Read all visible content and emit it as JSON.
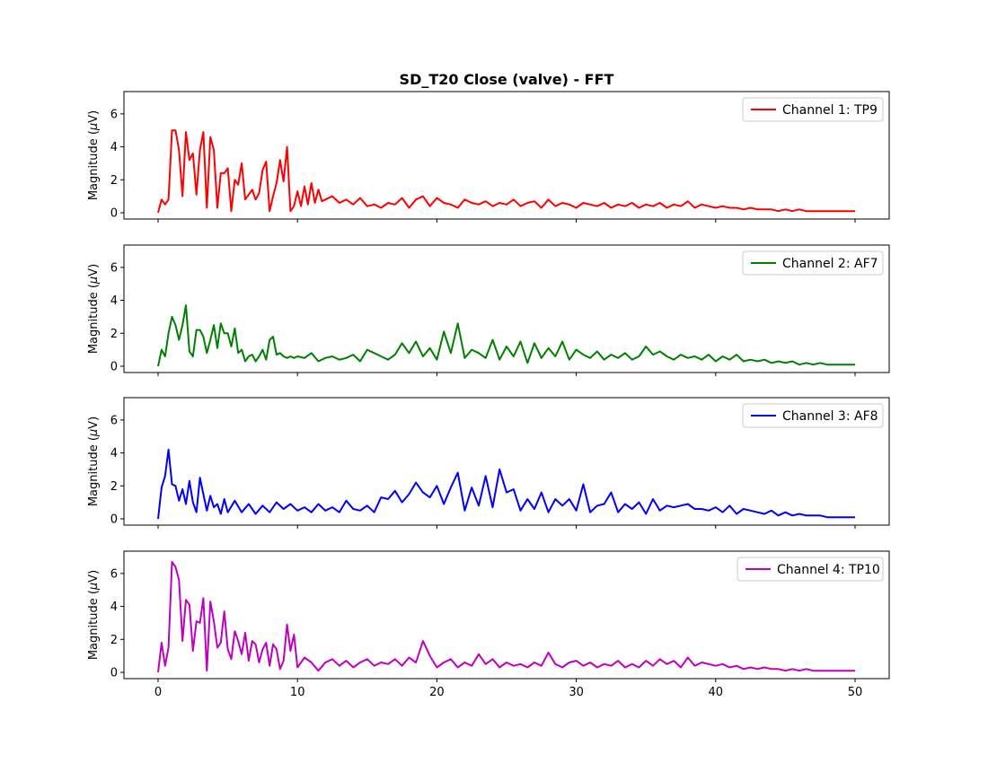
{
  "chart_data": {
    "type": "line",
    "title": "SD_T20 Close (valve) - FFT",
    "xlabel": "",
    "xlim": [
      0,
      50
    ],
    "x_ticks": [
      0,
      10,
      20,
      30,
      40,
      50
    ],
    "ylabel": "Magnitude ($\\mu$V)",
    "ylim": [
      0,
      7
    ],
    "y_ticks": [
      0,
      2,
      4,
      6
    ],
    "grid": false,
    "legend_placement": "upper right",
    "series": [
      {
        "name": "Channel 1: TP9",
        "color": "#ff0000",
        "x": [
          0,
          0.25,
          0.5,
          0.75,
          1,
          1.25,
          1.5,
          1.75,
          2,
          2.25,
          2.5,
          2.75,
          3,
          3.25,
          3.5,
          3.75,
          4,
          4.25,
          4.5,
          4.75,
          5,
          5.25,
          5.5,
          5.75,
          6,
          6.25,
          6.5,
          6.75,
          7,
          7.25,
          7.5,
          7.75,
          8,
          8.25,
          8.5,
          8.75,
          9,
          9.25,
          9.5,
          9.75,
          10,
          10.25,
          10.5,
          10.75,
          11,
          11.25,
          11.5,
          11.75,
          12,
          12.5,
          13,
          13.5,
          14,
          14.5,
          15,
          15.5,
          16,
          16.5,
          17,
          17.5,
          18,
          18.5,
          19,
          19.5,
          20,
          20.5,
          21,
          21.5,
          22,
          22.5,
          23,
          23.5,
          24,
          24.5,
          25,
          25.5,
          26,
          26.5,
          27,
          27.5,
          28,
          28.5,
          29,
          29.5,
          30,
          30.5,
          31,
          31.5,
          32,
          32.5,
          33,
          33.5,
          34,
          34.5,
          35,
          35.5,
          36,
          36.5,
          37,
          37.5,
          38,
          38.5,
          39,
          39.5,
          40,
          40.5,
          41,
          41.5,
          42,
          42.5,
          43,
          43.5,
          44,
          44.5,
          45,
          45.5,
          46,
          46.5,
          47,
          47.5,
          48,
          48.5,
          49,
          49.5,
          50
        ],
        "values": [
          0,
          0.8,
          0.5,
          0.8,
          5.0,
          5.0,
          3.8,
          1.0,
          4.9,
          3.2,
          3.6,
          1.1,
          3.8,
          4.9,
          0.3,
          4.6,
          3.8,
          0.3,
          2.4,
          2.4,
          2.7,
          0.1,
          2.0,
          1.7,
          3.0,
          0.8,
          1.1,
          1.4,
          0.8,
          1.2,
          2.6,
          3.1,
          0.1,
          1.0,
          1.8,
          3.2,
          1.9,
          4.0,
          0.1,
          0.4,
          1.3,
          0.4,
          1.6,
          0.5,
          1.8,
          0.6,
          1.4,
          0.7,
          0.8,
          1.0,
          0.6,
          0.8,
          0.5,
          0.9,
          0.4,
          0.5,
          0.3,
          0.6,
          0.5,
          0.9,
          0.3,
          0.8,
          1.0,
          0.4,
          0.9,
          0.6,
          0.5,
          0.3,
          0.8,
          0.6,
          0.5,
          0.7,
          0.4,
          0.6,
          0.5,
          0.8,
          0.4,
          0.6,
          0.7,
          0.3,
          0.8,
          0.4,
          0.6,
          0.5,
          0.3,
          0.6,
          0.5,
          0.4,
          0.6,
          0.3,
          0.5,
          0.4,
          0.6,
          0.3,
          0.5,
          0.4,
          0.6,
          0.3,
          0.5,
          0.4,
          0.7,
          0.3,
          0.5,
          0.4,
          0.3,
          0.4,
          0.3,
          0.3,
          0.2,
          0.3,
          0.2,
          0.2,
          0.2,
          0.1,
          0.2,
          0.1,
          0.2,
          0.1,
          0.1,
          0.1,
          0.1,
          0.1,
          0.1,
          0.1,
          0.1
        ]
      },
      {
        "name": "Channel 2: AF7",
        "color": "#008000",
        "x": [
          0,
          0.25,
          0.5,
          0.75,
          1,
          1.25,
          1.5,
          1.75,
          2,
          2.25,
          2.5,
          2.75,
          3,
          3.25,
          3.5,
          3.75,
          4,
          4.25,
          4.5,
          4.75,
          5,
          5.25,
          5.5,
          5.75,
          6,
          6.25,
          6.5,
          6.75,
          7,
          7.25,
          7.5,
          7.75,
          8,
          8.25,
          8.5,
          8.75,
          9,
          9.25,
          9.5,
          9.75,
          10,
          10.5,
          11,
          11.5,
          12,
          12.5,
          13,
          13.5,
          14,
          14.5,
          15,
          15.5,
          16,
          16.5,
          17,
          17.5,
          18,
          18.5,
          19,
          19.5,
          20,
          20.5,
          21,
          21.5,
          22,
          22.5,
          23,
          23.5,
          24,
          24.5,
          25,
          25.5,
          26,
          26.5,
          27,
          27.5,
          28,
          28.5,
          29,
          29.5,
          30,
          30.5,
          31,
          31.5,
          32,
          32.5,
          33,
          33.5,
          34,
          34.5,
          35,
          35.5,
          36,
          36.5,
          37,
          37.5,
          38,
          38.5,
          39,
          39.5,
          40,
          40.5,
          41,
          41.5,
          42,
          42.5,
          43,
          43.5,
          44,
          44.5,
          45,
          45.5,
          46,
          46.5,
          47,
          47.5,
          48,
          48.5,
          49,
          49.5,
          50
        ],
        "values": [
          0,
          1.0,
          0.6,
          2.0,
          3.0,
          2.5,
          1.6,
          2.5,
          3.7,
          0.9,
          0.6,
          2.2,
          2.2,
          1.8,
          0.8,
          1.6,
          2.5,
          1.1,
          2.6,
          2.0,
          2.0,
          1.2,
          2.3,
          0.8,
          1.0,
          0.3,
          0.6,
          0.7,
          0.3,
          0.6,
          1.0,
          0.4,
          1.6,
          1.8,
          0.7,
          0.8,
          0.6,
          0.5,
          0.6,
          0.5,
          0.6,
          0.5,
          0.8,
          0.3,
          0.5,
          0.6,
          0.4,
          0.5,
          0.7,
          0.3,
          1.0,
          0.8,
          0.6,
          0.4,
          0.7,
          1.4,
          0.8,
          1.5,
          0.6,
          1.1,
          0.4,
          2.1,
          0.8,
          2.6,
          0.5,
          1.0,
          0.8,
          0.5,
          1.6,
          0.4,
          1.2,
          0.6,
          1.5,
          0.2,
          1.4,
          0.5,
          1.1,
          0.6,
          1.5,
          0.4,
          1.0,
          0.7,
          0.5,
          0.9,
          0.4,
          0.7,
          0.5,
          0.8,
          0.4,
          0.6,
          1.2,
          0.7,
          0.9,
          0.6,
          0.4,
          0.7,
          0.5,
          0.6,
          0.4,
          0.7,
          0.3,
          0.6,
          0.4,
          0.7,
          0.3,
          0.4,
          0.3,
          0.4,
          0.2,
          0.3,
          0.2,
          0.3,
          0.1,
          0.2,
          0.1,
          0.2,
          0.1,
          0.1,
          0.1,
          0.1,
          0.1
        ]
      },
      {
        "name": "Channel 3: AF8",
        "color": "#0000ff",
        "x": [
          0,
          0.25,
          0.5,
          0.75,
          1,
          1.25,
          1.5,
          1.75,
          2,
          2.25,
          2.5,
          2.75,
          3,
          3.25,
          3.5,
          3.75,
          4,
          4.25,
          4.5,
          4.75,
          5,
          5.5,
          6,
          6.5,
          7,
          7.5,
          8,
          8.5,
          9,
          9.5,
          10,
          10.5,
          11,
          11.5,
          12,
          12.5,
          13,
          13.5,
          14,
          14.5,
          15,
          15.5,
          16,
          16.5,
          17,
          17.5,
          18,
          18.5,
          19,
          19.5,
          20,
          20.5,
          21,
          21.5,
          22,
          22.5,
          23,
          23.5,
          24,
          24.5,
          25,
          25.5,
          26,
          26.5,
          27,
          27.5,
          28,
          28.5,
          29,
          29.5,
          30,
          30.5,
          31,
          31.5,
          32,
          32.5,
          33,
          33.5,
          34,
          34.5,
          35,
          35.5,
          36,
          36.5,
          37,
          37.5,
          38,
          38.5,
          39,
          39.5,
          40,
          40.5,
          41,
          41.5,
          42,
          42.5,
          43,
          43.5,
          44,
          44.5,
          45,
          45.5,
          46,
          46.5,
          47,
          47.5,
          48,
          48.5,
          49,
          49.5,
          50
        ],
        "values": [
          0,
          1.9,
          2.6,
          4.2,
          2.1,
          2.0,
          1.1,
          1.8,
          0.9,
          2.3,
          1.0,
          0.4,
          2.5,
          1.5,
          0.5,
          1.4,
          0.7,
          0.9,
          0.3,
          1.2,
          0.4,
          1.1,
          0.4,
          0.9,
          0.3,
          0.8,
          0.4,
          1.0,
          0.6,
          0.9,
          0.5,
          0.7,
          0.4,
          0.9,
          0.5,
          0.7,
          0.4,
          1.1,
          0.6,
          0.5,
          0.8,
          0.4,
          1.3,
          1.2,
          1.7,
          1.0,
          1.5,
          2.2,
          1.6,
          1.3,
          2.0,
          0.9,
          1.9,
          2.8,
          0.5,
          1.9,
          0.8,
          2.6,
          0.7,
          3.0,
          1.6,
          1.8,
          0.5,
          1.2,
          0.6,
          1.6,
          0.4,
          1.2,
          0.8,
          1.2,
          0.5,
          2.1,
          0.4,
          0.8,
          0.9,
          1.6,
          0.4,
          0.9,
          0.6,
          1.0,
          0.3,
          1.2,
          0.5,
          0.8,
          0.7,
          0.8,
          0.9,
          0.6,
          0.6,
          0.5,
          0.7,
          0.4,
          0.8,
          0.3,
          0.6,
          0.5,
          0.4,
          0.3,
          0.5,
          0.2,
          0.4,
          0.2,
          0.3,
          0.2,
          0.2,
          0.2,
          0.1,
          0.1,
          0.1,
          0.1,
          0.1
        ]
      },
      {
        "name": "Channel 4: TP10",
        "color": "#bf00bf",
        "x": [
          0,
          0.25,
          0.5,
          0.75,
          1,
          1.25,
          1.5,
          1.75,
          2,
          2.25,
          2.5,
          2.75,
          3,
          3.25,
          3.5,
          3.75,
          4,
          4.25,
          4.5,
          4.75,
          5,
          5.25,
          5.5,
          5.75,
          6,
          6.25,
          6.5,
          6.75,
          7,
          7.25,
          7.5,
          7.75,
          8,
          8.25,
          8.5,
          8.75,
          9,
          9.25,
          9.5,
          9.75,
          10,
          10.5,
          11,
          11.5,
          12,
          12.5,
          13,
          13.5,
          14,
          14.5,
          15,
          15.5,
          16,
          16.5,
          17,
          17.5,
          18,
          18.5,
          19,
          19.5,
          20,
          20.5,
          21,
          21.5,
          22,
          22.5,
          23,
          23.5,
          24,
          24.5,
          25,
          25.5,
          26,
          26.5,
          27,
          27.5,
          28,
          28.5,
          29,
          29.5,
          30,
          30.5,
          31,
          31.5,
          32,
          32.5,
          33,
          33.5,
          34,
          34.5,
          35,
          35.5,
          36,
          36.5,
          37,
          37.5,
          38,
          38.5,
          39,
          39.5,
          40,
          40.5,
          41,
          41.5,
          42,
          42.5,
          43,
          43.5,
          44,
          44.5,
          45,
          45.5,
          46,
          46.5,
          47,
          47.5,
          48,
          48.5,
          49,
          49.5,
          50
        ],
        "values": [
          0,
          1.8,
          0.4,
          1.5,
          6.7,
          6.4,
          5.6,
          1.9,
          4.4,
          4.1,
          1.3,
          3.1,
          3.0,
          4.5,
          0.1,
          4.3,
          3.1,
          1.5,
          1.8,
          3.7,
          1.4,
          0.8,
          2.5,
          1.9,
          1.1,
          2.4,
          0.7,
          1.9,
          1.7,
          0.6,
          1.4,
          1.8,
          0.4,
          1.7,
          1.4,
          0.2,
          0.7,
          2.9,
          1.3,
          2.3,
          0.3,
          0.9,
          0.6,
          0.1,
          0.6,
          0.8,
          0.4,
          0.7,
          0.3,
          0.6,
          0.8,
          0.4,
          0.6,
          0.5,
          0.8,
          0.4,
          0.9,
          0.6,
          1.9,
          1.0,
          0.3,
          0.6,
          0.8,
          0.3,
          0.6,
          0.4,
          1.1,
          0.5,
          0.8,
          0.3,
          0.6,
          0.4,
          0.5,
          0.3,
          0.6,
          0.4,
          1.2,
          0.5,
          0.3,
          0.6,
          0.7,
          0.4,
          0.6,
          0.3,
          0.5,
          0.4,
          0.7,
          0.3,
          0.5,
          0.3,
          0.7,
          0.4,
          0.8,
          0.5,
          0.7,
          0.3,
          0.9,
          0.4,
          0.6,
          0.5,
          0.4,
          0.5,
          0.3,
          0.4,
          0.2,
          0.3,
          0.2,
          0.3,
          0.2,
          0.2,
          0.1,
          0.2,
          0.1,
          0.2,
          0.1,
          0.1,
          0.1,
          0.1,
          0.1,
          0.1,
          0.1
        ]
      }
    ]
  }
}
